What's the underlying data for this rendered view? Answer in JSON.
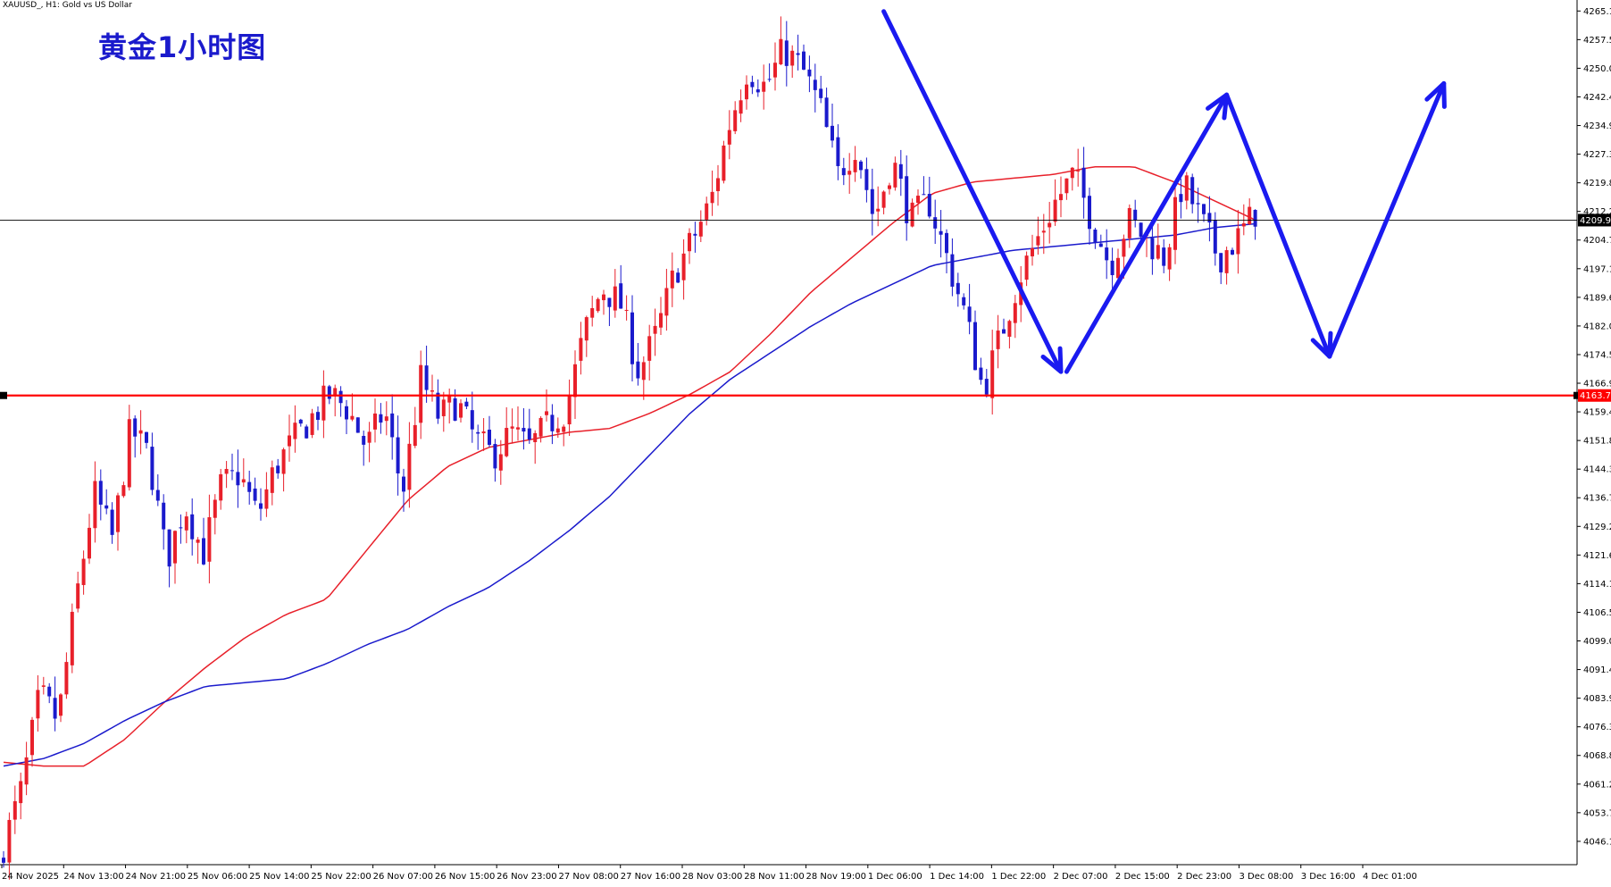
{
  "window": {
    "symbol_label": "XAUUSD_, H1:  Gold vs US Dollar"
  },
  "overlay": {
    "title": "黄金1小时图"
  },
  "colors": {
    "background": "#ffffff",
    "bull": "#e8202a",
    "bear": "#1a1acc",
    "ma_fast": "#e8202a",
    "ma_slow": "#1a1acc",
    "support": "#ff0000",
    "arrow": "#1a1af0",
    "price_tag_current": "#000000",
    "price_tag_support": "#ff0000"
  },
  "price_axis": {
    "ticks": [
      "4265.10",
      "4257.55",
      "4250.00",
      "4242.45",
      "4234.90",
      "4227.35",
      "4219.80",
      "4212.25",
      "4204.70",
      "4197.15",
      "4189.60",
      "4182.05",
      "4174.50",
      "4166.95",
      "4159.40",
      "4151.85",
      "4144.30",
      "4136.75",
      "4129.20",
      "4121.65",
      "4114.10",
      "4106.55",
      "4099.00",
      "4091.45",
      "4083.90",
      "4076.35",
      "4068.80",
      "4061.25",
      "4053.70",
      "4046.15"
    ],
    "current_price": "4209.95",
    "support_price": "4163.72"
  },
  "time_axis": {
    "labels": [
      "24 Nov 2025",
      "24 Nov 13:00",
      "24 Nov 21:00",
      "25 Nov 06:00",
      "25 Nov 14:00",
      "25 Nov 22:00",
      "26 Nov 07:00",
      "26 Nov 15:00",
      "26 Nov 23:00",
      "27 Nov 08:00",
      "27 Nov 16:00",
      "28 Nov 03:00",
      "28 Nov 11:00",
      "28 Nov 19:00",
      "1 Dec 06:00",
      "1 Dec 14:00",
      "1 Dec 22:00",
      "2 Dec 07:00",
      "2 Dec 15:00",
      "2 Dec 23:00",
      "3 Dec 08:00",
      "3 Dec 16:00",
      "4 Dec 01:00"
    ]
  },
  "chart_data": {
    "type": "candlestick",
    "title": "黄金1小时图",
    "symbol": "XAUUSD_",
    "timeframe": "H1",
    "ylim": [
      4040,
      4268
    ],
    "horizontal_lines": [
      {
        "price": 4209.95
      },
      {
        "price": 4163.72
      }
    ],
    "candles_anchor_close": [
      4045,
      4060,
      4085,
      4078,
      4110,
      4138,
      4126,
      4155,
      4148,
      4120,
      4135,
      4122,
      4140,
      4143,
      4132,
      4145,
      4152,
      4158,
      4164,
      4160,
      4150,
      4160,
      4138,
      4168,
      4158,
      4162,
      4152,
      4148,
      4154,
      4150,
      4156,
      4160,
      4180,
      4192,
      4188,
      4170,
      4180,
      4196,
      4205,
      4215,
      4235,
      4250,
      4245,
      4255,
      4250,
      4240,
      4222,
      4230,
      4210,
      4226,
      4210,
      4215,
      4200,
      4185,
      4165,
      4180,
      4195,
      4205,
      4215,
      4222,
      4210,
      4198,
      4210,
      4205,
      4200,
      4220,
      4210,
      4200,
      4205,
      4212
    ],
    "candle_count": 220,
    "ma_fast_anchors": [
      4067,
      4066,
      4066,
      4073,
      4083,
      4092,
      4100,
      4106,
      4110,
      4123,
      4136,
      4145,
      4150,
      4152,
      4154,
      4155,
      4159,
      4164,
      4170,
      4180,
      4191,
      4200,
      4209,
      4217,
      4220,
      4221,
      4222,
      4224,
      4224,
      4220,
      4215,
      4210
    ],
    "ma_slow_anchors": [
      4066,
      4068,
      4072,
      4078,
      4083,
      4087,
      4088,
      4089,
      4093,
      4098,
      4102,
      4108,
      4113,
      4120,
      4128,
      4137,
      4148,
      4159,
      4168,
      4175,
      4182,
      4188,
      4193,
      4198,
      4200,
      4202,
      4203,
      4204,
      4205,
      4206,
      4208,
      4209
    ],
    "arrows": [
      {
        "from": [
          154,
          4265
        ],
        "to": [
          185,
          4170
        ]
      },
      {
        "from": [
          186,
          4170
        ],
        "to": [
          214,
          4243
        ]
      },
      {
        "from": [
          214,
          4243
        ],
        "to": [
          232,
          4174
        ]
      },
      {
        "from": [
          232,
          4174
        ],
        "to": [
          252,
          4246
        ]
      }
    ]
  }
}
